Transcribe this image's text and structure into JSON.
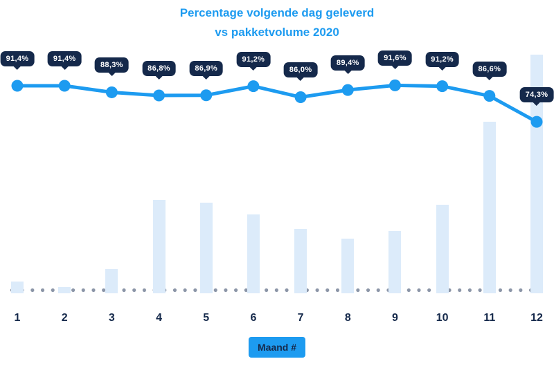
{
  "title": {
    "line1": "Percentage volgende dag geleverd",
    "line2": "vs pakketvolume 2020"
  },
  "x_axis": {
    "label": "Maand #",
    "ticks": [
      "1",
      "2",
      "3",
      "4",
      "5",
      "6",
      "7",
      "8",
      "9",
      "10",
      "11",
      "12"
    ]
  },
  "colors": {
    "accent": "#1D9BF0",
    "badge_bg": "#15294B",
    "badge_text": "#FFFFFF",
    "bar_fill": "#DCEBFA",
    "dot": "#8B95A7",
    "tick_text": "#15294B"
  },
  "chart_data": {
    "type": "line+bar",
    "title": "Percentage volgende dag geleverd vs pakketvolume 2020",
    "categories": [
      "1",
      "2",
      "3",
      "4",
      "5",
      "6",
      "7",
      "8",
      "9",
      "10",
      "11",
      "12"
    ],
    "series": [
      {
        "name": "Percentage volgende dag geleverd",
        "type": "line",
        "unit": "%",
        "values": [
          91.4,
          91.4,
          88.3,
          86.8,
          86.9,
          91.2,
          86.0,
          89.4,
          91.6,
          91.2,
          86.6,
          74.3
        ],
        "labels": [
          "91,4%",
          "91,4%",
          "88,3%",
          "86,8%",
          "86,9%",
          "91,2%",
          "86,0%",
          "89,4%",
          "91,6%",
          "91,2%",
          "86,6%",
          "74,3%"
        ]
      },
      {
        "name": "Pakketvolume",
        "type": "bar",
        "unit": "relative-index (tallest bar = 100, no y-axis shown)",
        "values": [
          5,
          2.5,
          10,
          39,
          38,
          33,
          27,
          23,
          26,
          37,
          72,
          100
        ]
      }
    ],
    "xlabel": "Maand #",
    "ylim_line": [
      70,
      95
    ],
    "grid": false,
    "legend": "none"
  }
}
